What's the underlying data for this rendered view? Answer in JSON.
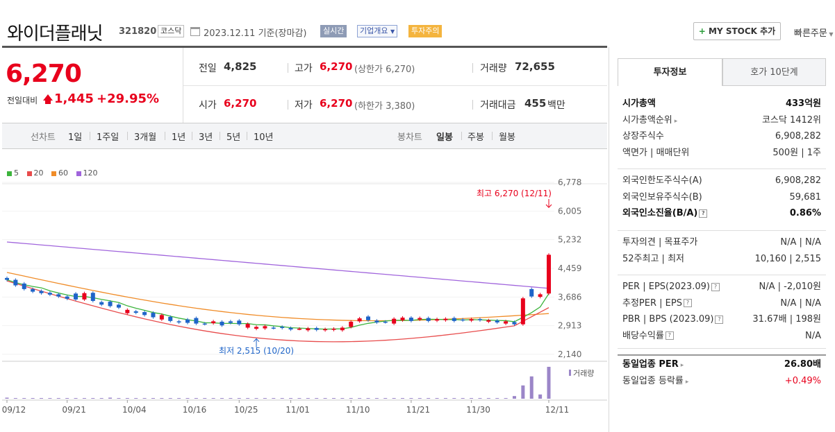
{
  "header": {
    "company_name": "와이더플래닛",
    "company_code": "321820",
    "market": "코스닥",
    "date": "2023.12.11 기준(장마감)",
    "realtime_label": "실시간",
    "company_info_label": "기업개요",
    "caution_label": "투자주의",
    "mystock_label": "MY STOCK 추가",
    "quick_order_label": "빠른주문"
  },
  "price": {
    "current": "6,270",
    "change_label": "전일대비",
    "change_amount": "1,445",
    "change_pct": "+29.95%"
  },
  "stats": {
    "prev_close_label": "전일",
    "prev_close": "4,825",
    "high_label": "고가",
    "high": "6,270",
    "upper_limit": "(상한가 6,270)",
    "volume_label": "거래량",
    "volume": "72,655",
    "open_label": "시가",
    "open": "6,270",
    "low_label": "저가",
    "low": "6,270",
    "lower_limit": "(하한가 3,380)",
    "trade_value_label": "거래대금",
    "trade_value": "455",
    "trade_value_unit": "백만"
  },
  "period_bar": {
    "line_label": "선차트",
    "line_periods": [
      "1일",
      "1주일",
      "3개월",
      "1년",
      "3년",
      "5년",
      "10년"
    ],
    "candle_label": "봉차트",
    "candle_periods": [
      "일봉",
      "주봉",
      "월봉"
    ],
    "active_candle": "일봉"
  },
  "chart_data": {
    "type": "candlestick",
    "legend": [
      {
        "name": "5",
        "color": "#3cb43c"
      },
      {
        "name": "20",
        "color": "#e84c4c"
      },
      {
        "name": "60",
        "color": "#f08c28"
      },
      {
        "name": "120",
        "color": "#a064dc"
      }
    ],
    "y_ticks": [
      "6,778",
      "6,005",
      "5,232",
      "4,459",
      "3,686",
      "2,913",
      "2,140"
    ],
    "ylim": [
      2140,
      6778
    ],
    "x_ticks": [
      "09/12",
      "09/21",
      "10/04",
      "10/16",
      "10/25",
      "11/01",
      "11/10",
      "11/21",
      "11/30",
      "12/11"
    ],
    "high_annotation": "최고 6,270 (12/11)",
    "low_annotation": "최저 2,515 (10/20)",
    "volume_label": "거래량",
    "candles": [
      {
        "o": 4200,
        "c": 4150
      },
      {
        "o": 4150,
        "c": 4000
      },
      {
        "o": 4050,
        "c": 3900
      },
      {
        "o": 3900,
        "c": 3830
      },
      {
        "o": 3850,
        "c": 3790
      },
      {
        "o": 3800,
        "c": 3750
      },
      {
        "o": 3760,
        "c": 3700
      },
      {
        "o": 3700,
        "c": 3640
      },
      {
        "o": 3780,
        "c": 3620
      },
      {
        "o": 3620,
        "c": 3790
      },
      {
        "o": 3800,
        "c": 3580
      },
      {
        "o": 3550,
        "c": 3480
      },
      {
        "o": 3560,
        "c": 3440
      },
      {
        "o": 3480,
        "c": 3400
      },
      {
        "o": 3250,
        "c": 3340
      },
      {
        "o": 3300,
        "c": 3260
      },
      {
        "o": 3280,
        "c": 3200
      },
      {
        "o": 3260,
        "c": 3140
      },
      {
        "o": 3080,
        "c": 3200
      },
      {
        "o": 3150,
        "c": 3040
      },
      {
        "o": 3030,
        "c": 3000
      },
      {
        "o": 3080,
        "c": 2990
      },
      {
        "o": 3120,
        "c": 2970
      },
      {
        "o": 2970,
        "c": 2960
      },
      {
        "o": 2980,
        "c": 3030
      },
      {
        "o": 3020,
        "c": 2920
      },
      {
        "o": 3030,
        "c": 2990
      },
      {
        "o": 3050,
        "c": 2950
      },
      {
        "o": 2860,
        "c": 2960
      },
      {
        "o": 2830,
        "c": 2880
      },
      {
        "o": 2840,
        "c": 2900
      },
      {
        "o": 2860,
        "c": 2850
      },
      {
        "o": 2880,
        "c": 2850
      },
      {
        "o": 2850,
        "c": 2810
      },
      {
        "o": 2830,
        "c": 2830
      },
      {
        "o": 2790,
        "c": 2840
      },
      {
        "o": 2850,
        "c": 2800
      },
      {
        "o": 2790,
        "c": 2820
      },
      {
        "o": 2800,
        "c": 2830
      },
      {
        "o": 2790,
        "c": 2860
      },
      {
        "o": 2880,
        "c": 3020
      },
      {
        "o": 3030,
        "c": 3110
      },
      {
        "o": 3160,
        "c": 3060
      },
      {
        "o": 3050,
        "c": 3000
      },
      {
        "o": 3020,
        "c": 3010
      },
      {
        "o": 2970,
        "c": 3100
      },
      {
        "o": 3060,
        "c": 3130
      },
      {
        "o": 3130,
        "c": 3040
      },
      {
        "o": 3080,
        "c": 3120
      },
      {
        "o": 3120,
        "c": 3040
      },
      {
        "o": 3050,
        "c": 3090
      },
      {
        "o": 3060,
        "c": 3100
      },
      {
        "o": 3120,
        "c": 3040
      },
      {
        "o": 3080,
        "c": 3060
      },
      {
        "o": 3050,
        "c": 3090
      },
      {
        "o": 3090,
        "c": 3060
      },
      {
        "o": 3020,
        "c": 3060
      },
      {
        "o": 3050,
        "c": 3000
      },
      {
        "o": 2970,
        "c": 3030
      },
      {
        "o": 3010,
        "c": 2950
      },
      {
        "o": 2950,
        "c": 3650
      },
      {
        "o": 3900,
        "c": 3700
      },
      {
        "o": 3690,
        "c": 3760
      },
      {
        "o": 3780,
        "c": 4825
      }
    ],
    "volume_relative": [
      2,
      1,
      1,
      1,
      1,
      1,
      1,
      1,
      1,
      1,
      1,
      1,
      2,
      1,
      1,
      1,
      1,
      1,
      1,
      1,
      1,
      1,
      1,
      1,
      1,
      1,
      1,
      1,
      1,
      1,
      1,
      1,
      1,
      1,
      1,
      1,
      1,
      1,
      1,
      1,
      1,
      1,
      1,
      1,
      1,
      1,
      1,
      1,
      1,
      1,
      1,
      1,
      1,
      1,
      1,
      1,
      1,
      1,
      1,
      5,
      25,
      42,
      8,
      60
    ]
  },
  "right_panel": {
    "tab_invest": "투자정보",
    "tab_order": "호가 10단계",
    "rows_a": [
      {
        "k": "시가총액",
        "v": "433억원",
        "bold": true
      },
      {
        "k": "시가총액순위",
        "v": "코스닥 1412위"
      },
      {
        "k": "상장주식수",
        "v": "6,908,282"
      },
      {
        "k": "액면가 | 매매단위",
        "v": "500원 | 1주"
      }
    ],
    "rows_b": [
      {
        "k": "외국인한도주식수(A)",
        "v": "6,908,282"
      },
      {
        "k": "외국인보유주식수(B)",
        "v": "59,681"
      },
      {
        "k": "외국인소진율(B/A)",
        "v": "0.86%",
        "bold": true
      }
    ],
    "rows_c": [
      {
        "k": "투자의견 | 목표주가",
        "v": "N/A | N/A"
      },
      {
        "k": "52주최고 | 최저",
        "v": "10,160 | 2,515"
      }
    ],
    "rows_d": [
      {
        "k": "PER | EPS(2023.09)",
        "v": "N/A | -2,010원"
      },
      {
        "k": "추정PER | EPS",
        "v": "N/A | N/A"
      },
      {
        "k": "PBR | BPS (2023.09)",
        "v": "31.67배 | 198원"
      },
      {
        "k": "배당수익률",
        "v": "N/A"
      }
    ],
    "rows_e": [
      {
        "k": "동일업종 PER",
        "v": "26.80배",
        "bold": true
      },
      {
        "k": "동일업종 등락률",
        "v": "+0.49%",
        "red": true
      }
    ]
  }
}
